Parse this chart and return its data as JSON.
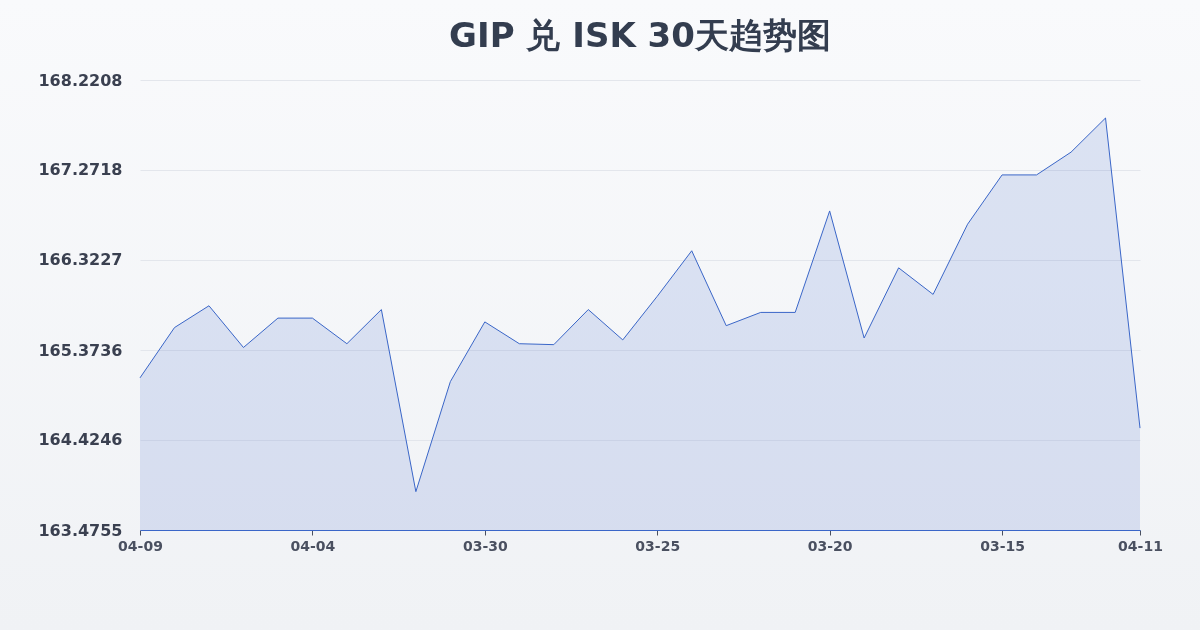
{
  "chart_data": {
    "type": "area",
    "title": "GIP 兑 ISK 30天趋势图",
    "categories": [
      "04-09",
      null,
      null,
      null,
      null,
      "04-04",
      null,
      null,
      null,
      null,
      "03-30",
      null,
      null,
      null,
      null,
      "03-25",
      null,
      null,
      null,
      null,
      "03-20",
      null,
      null,
      null,
      null,
      "03-15",
      null,
      null,
      null,
      "04-11"
    ],
    "series": [
      {
        "color": "#3a66c8",
        "values": [
          165.08,
          165.61,
          165.84,
          165.4,
          165.71,
          165.71,
          165.44,
          165.8,
          163.88,
          165.04,
          165.67,
          165.44,
          165.43,
          165.8,
          165.48,
          165.94,
          166.42,
          165.63,
          165.77,
          165.77,
          166.84,
          165.5,
          166.24,
          165.96,
          166.7,
          167.22,
          167.22,
          167.46,
          167.82,
          164.55
        ]
      }
    ],
    "ylim": [
      163.4755,
      168.2208
    ],
    "yticks": [
      163.4755,
      164.4246,
      165.3736,
      166.3227,
      167.2718,
      168.2208
    ],
    "grid": "y"
  }
}
